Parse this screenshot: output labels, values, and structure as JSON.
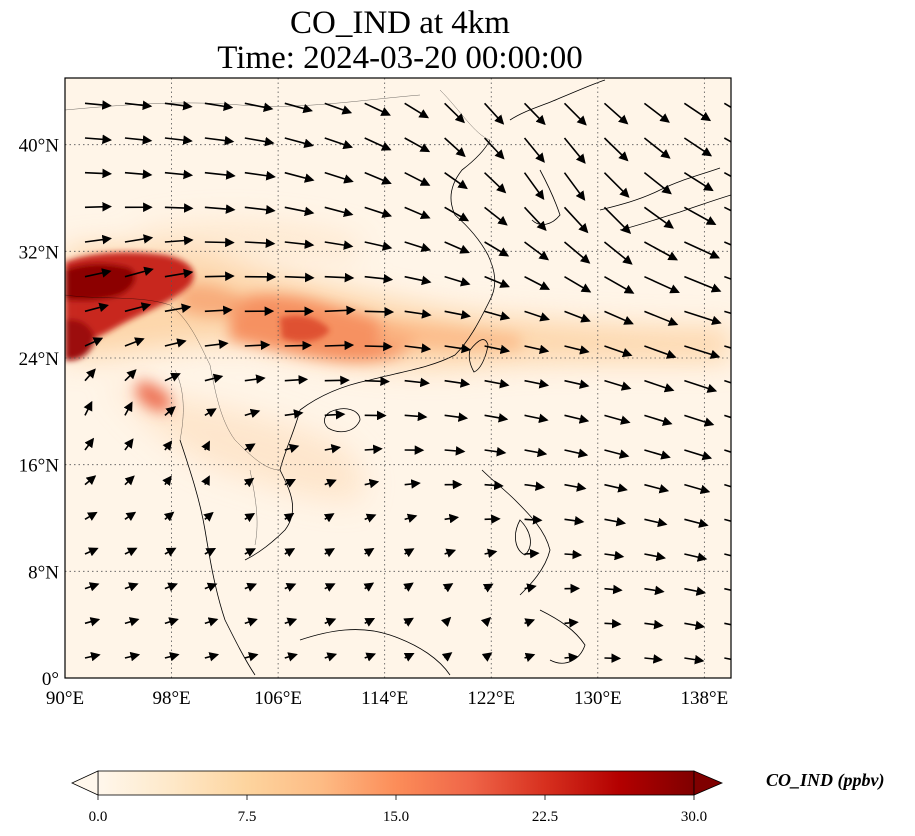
{
  "title": {
    "line1": "CO_IND at 4km",
    "line2": "Time: 2024-03-20 00:00:00"
  },
  "map": {
    "region": "East and Southeast Asia",
    "projection": "Plate Carree",
    "lon_range": [
      90,
      140
    ],
    "lat_range": [
      0,
      45
    ],
    "lon_ticks": [
      90,
      98,
      106,
      114,
      122,
      130,
      138
    ],
    "lat_ticks": [
      0,
      8,
      16,
      24,
      32,
      40
    ],
    "lon_tick_labels": [
      "90°E",
      "98°E",
      "106°E",
      "114°E",
      "122°E",
      "130°E",
      "138°E"
    ],
    "lat_tick_labels": [
      "0°",
      "8°N",
      "16°N",
      "24°N",
      "32°N",
      "40°N"
    ],
    "gridlines": "dotted",
    "field_variable": "CO_IND",
    "overlay": "wind vectors"
  },
  "colorbar": {
    "label": "CO_IND (ppbv)",
    "min": 0.0,
    "max": 30.0,
    "ticks": [
      "0.0",
      "7.5",
      "15.0",
      "22.5",
      "30.0"
    ],
    "colormap": "OrRd",
    "colors": [
      "#fff7ec",
      "#fee8c8",
      "#fdd49e",
      "#fdbb84",
      "#fc8d59",
      "#ef6548",
      "#d7301f",
      "#b30000",
      "#7f0000"
    ],
    "extend": "both"
  },
  "chart_data": {
    "type": "heatmap",
    "title": "CO_IND at 4km",
    "subtitle": "Time: 2024-03-20 00:00:00",
    "xlabel": "",
    "ylabel": "",
    "xlim": [
      90,
      140
    ],
    "ylim": [
      0,
      45
    ],
    "grid": true,
    "concentration_plumes_ppbv": [
      {
        "lon": 93,
        "lat": 29.5,
        "value": 30
      },
      {
        "lon": 91,
        "lat": 25,
        "value": 26
      },
      {
        "lon": 98,
        "lat": 28,
        "value": 18
      },
      {
        "lon": 103,
        "lat": 27,
        "value": 15
      },
      {
        "lon": 109,
        "lat": 26,
        "value": 19
      },
      {
        "lon": 113,
        "lat": 25,
        "value": 15
      },
      {
        "lon": 118,
        "lat": 24.5,
        "value": 12
      },
      {
        "lon": 125,
        "lat": 25,
        "value": 8
      },
      {
        "lon": 98.5,
        "lat": 21,
        "value": 14
      },
      {
        "lon": 102,
        "lat": 23,
        "value": 8
      },
      {
        "lon": 107,
        "lat": 17,
        "value": 4
      },
      {
        "lon": 111,
        "lat": 13,
        "value": 3
      }
    ],
    "wind_vectors": [
      {
        "lon": 96,
        "lat": 39,
        "u": 8,
        "v": -1
      },
      {
        "lon": 102,
        "lat": 37,
        "u": 10,
        "v": -1
      },
      {
        "lon": 108,
        "lat": 38,
        "u": 9,
        "v": -3
      },
      {
        "lon": 114,
        "lat": 40,
        "u": 8,
        "v": -4
      },
      {
        "lon": 120,
        "lat": 42,
        "u": 5,
        "v": -7
      },
      {
        "lon": 126,
        "lat": 38,
        "u": 5,
        "v": -10
      },
      {
        "lon": 130,
        "lat": 35,
        "u": 8,
        "v": -9
      },
      {
        "lon": 135,
        "lat": 31,
        "u": 12,
        "v": -5
      },
      {
        "lon": 138,
        "lat": 27,
        "u": 12,
        "v": -3
      },
      {
        "lon": 95,
        "lat": 30,
        "u": 9,
        "v": 3
      },
      {
        "lon": 103,
        "lat": 30,
        "u": 10,
        "v": 0
      },
      {
        "lon": 110,
        "lat": 27,
        "u": 10,
        "v": 1
      },
      {
        "lon": 118,
        "lat": 25,
        "u": 8,
        "v": -1
      },
      {
        "lon": 126,
        "lat": 24,
        "u": 7,
        "v": -1
      },
      {
        "lon": 93,
        "lat": 20,
        "u": 1,
        "v": 5
      },
      {
        "lon": 100,
        "lat": 16,
        "u": 0,
        "v": 3
      },
      {
        "lon": 108,
        "lat": 12,
        "u": 2,
        "v": 2
      },
      {
        "lon": 114,
        "lat": 8,
        "u": 2,
        "v": 2
      },
      {
        "lon": 120,
        "lat": 4,
        "u": 1,
        "v": 2
      }
    ]
  }
}
